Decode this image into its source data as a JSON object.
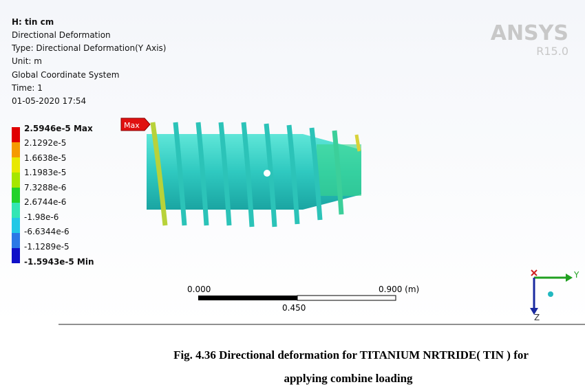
{
  "header": {
    "lines": [
      "H: tin cm",
      "Directional Deformation",
      "Type: Directional Deformation(Y Axis)",
      "Unit: m",
      "Global Coordinate System",
      "Time: 1",
      "01-05-2020 17:54"
    ]
  },
  "legend": {
    "labels": [
      "2.5946e-5 Max",
      "2.1292e-5",
      "1.6638e-5",
      "1.1983e-5",
      "7.3288e-6",
      "2.6744e-6",
      "-1.98e-6",
      "-6.6344e-6",
      "-1.1289e-5",
      "-1.5943e-5 Min"
    ]
  },
  "logo": {
    "name": "ANSYS",
    "version": "R15.0"
  },
  "probe": {
    "label": "Max"
  },
  "scale_bar": {
    "start": "0.000",
    "end": "0.900 (m)",
    "middle": "0.450"
  },
  "triad": {
    "y_label": "Y",
    "z_label": "Z"
  },
  "caption": {
    "lines": [
      "Fig. 4.36 Directional deformation for TITANIUM NRTRIDE( TIN ) for",
      "applying combine loading"
    ]
  }
}
